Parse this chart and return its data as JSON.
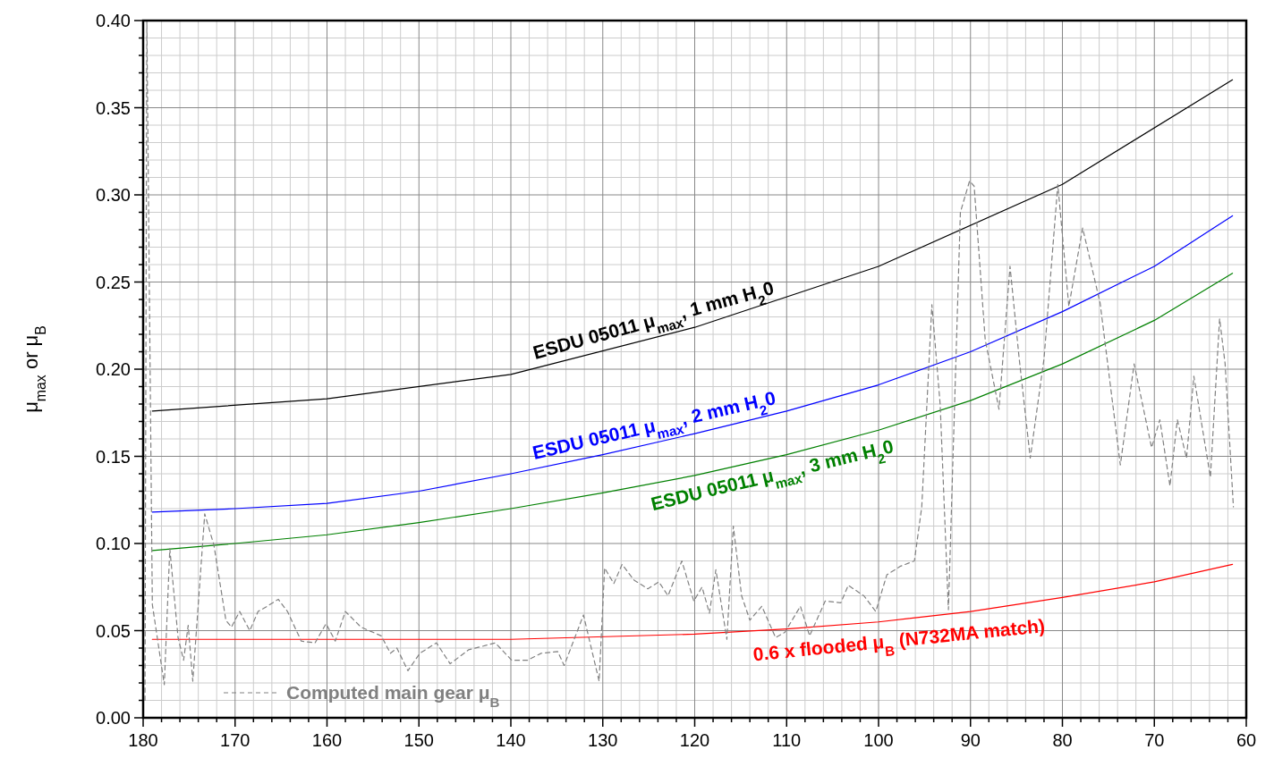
{
  "chart_data": {
    "type": "line",
    "ylabel": "μ$_{max}$ or μ$_{B}$",
    "xlim": [
      180,
      60
    ],
    "xticks": [
      180,
      170,
      160,
      150,
      140,
      130,
      120,
      110,
      100,
      90,
      80,
      70,
      60
    ],
    "ylim": [
      0,
      0.4
    ],
    "yticks": [
      {
        "value": 0,
        "label": "0.00"
      },
      {
        "value": 0.05,
        "label": "0.05"
      },
      {
        "value": 0.1,
        "label": "0.10"
      },
      {
        "value": 0.15,
        "label": "0.15"
      },
      {
        "value": 0.2,
        "label": "0.20"
      },
      {
        "value": 0.25,
        "label": "0.25"
      },
      {
        "value": 0.3,
        "label": "0.30"
      },
      {
        "value": 0.35,
        "label": "0.35"
      },
      {
        "value": 0.4,
        "label": "0.40"
      }
    ],
    "grid": true,
    "legend": "bottom left",
    "marker": "none",
    "series": [
      {
        "name": "ESDU 05011 μ$_{max}$, 1 mm H$_{2}$0",
        "color": "#000000",
        "x": [
          179,
          160,
          140,
          120,
          100,
          80,
          61.5
        ],
        "values": [
          0.176,
          0.183,
          0.197,
          0.224,
          0.259,
          0.306,
          0.366
        ]
      },
      {
        "name": "ESDU 05011 μ$_{max}$, 2 mm H$_{2}$0",
        "color": "#0000ff",
        "x": [
          179,
          170,
          160,
          150,
          140,
          130,
          120,
          110,
          100,
          90,
          80,
          70,
          61.5
        ],
        "values": [
          0.118,
          0.12,
          0.123,
          0.13,
          0.14,
          0.151,
          0.163,
          0.176,
          0.191,
          0.21,
          0.233,
          0.259,
          0.288
        ]
      },
      {
        "name": "ESDU 05011 μ$_{max}$, 3 mm H$_{2}$0",
        "color": "#008000",
        "x": [
          179,
          170,
          160,
          150,
          140,
          130,
          120,
          110,
          100,
          90,
          80,
          70,
          61.5
        ],
        "values": [
          0.096,
          0.1,
          0.105,
          0.112,
          0.12,
          0.129,
          0.139,
          0.151,
          0.165,
          0.182,
          0.203,
          0.228,
          0.255
        ]
      },
      {
        "name": "0.6 x flooded μ$_{B}$ (N732MA match)",
        "color": "#ff0000",
        "x": [
          179,
          160,
          140,
          120,
          110,
          100,
          90,
          80,
          70,
          61.5
        ],
        "values": [
          0.045,
          0.045,
          0.045,
          0.048,
          0.051,
          0.055,
          0.061,
          0.069,
          0.078,
          0.088
        ]
      },
      {
        "name": "Computed main gear μ$_{B}$",
        "color": "#808080",
        "line_style": "dashed",
        "x": [
          179.8,
          179.6,
          179,
          177.7,
          177.1,
          176.2,
          175.6,
          175.1,
          174.6,
          173.3,
          172.3,
          171,
          170.4,
          169.5,
          168.4,
          167.5,
          166.5,
          165.3,
          164.3,
          162.8,
          161.3,
          160.1,
          159.1,
          158,
          156.3,
          154.1,
          153.1,
          152.4,
          151.2,
          149.9,
          148.1,
          146.6,
          144.6,
          143.1,
          141.7,
          139.9,
          138.2,
          136.7,
          134.9,
          134.2,
          132.1,
          130.4,
          129.8,
          128.8,
          127.9,
          126.6,
          125.1,
          123.9,
          122.9,
          121.4,
          120.1,
          119.2,
          118.4,
          117.7,
          116.5,
          115.8,
          114.9,
          114,
          112.7,
          111.2,
          110.2,
          108.5,
          107.5,
          105.8,
          104.1,
          103.3,
          101.6,
          100.3,
          99.1,
          97.6,
          96.1,
          95.3,
          94.2,
          93.3,
          92.4,
          91.1,
          90.1,
          89.6,
          88.4,
          86.9,
          85.7,
          84.7,
          83.5,
          82,
          80.5,
          79.3,
          77.8,
          75.9,
          73.7,
          72.2,
          70.3,
          69.4,
          68.3,
          67.5,
          66.5,
          65.7,
          63.9,
          62.9,
          62.3,
          61.4
        ],
        "values": [
          0.01,
          0.4,
          0.065,
          0.019,
          0.097,
          0.046,
          0.033,
          0.053,
          0.021,
          0.117,
          0.099,
          0.056,
          0.052,
          0.061,
          0.05,
          0.061,
          0.064,
          0.068,
          0.061,
          0.044,
          0.043,
          0.054,
          0.044,
          0.061,
          0.052,
          0.047,
          0.037,
          0.04,
          0.027,
          0.037,
          0.043,
          0.031,
          0.039,
          0.041,
          0.043,
          0.033,
          0.033,
          0.037,
          0.038,
          0.03,
          0.059,
          0.021,
          0.086,
          0.077,
          0.088,
          0.079,
          0.074,
          0.078,
          0.07,
          0.09,
          0.067,
          0.075,
          0.06,
          0.085,
          0.045,
          0.11,
          0.07,
          0.056,
          0.064,
          0.046,
          0.049,
          0.064,
          0.047,
          0.067,
          0.066,
          0.076,
          0.07,
          0.061,
          0.082,
          0.087,
          0.09,
          0.121,
          0.237,
          0.18,
          0.062,
          0.29,
          0.308,
          0.305,
          0.217,
          0.177,
          0.259,
          0.206,
          0.149,
          0.206,
          0.306,
          0.236,
          0.281,
          0.238,
          0.145,
          0.203,
          0.155,
          0.171,
          0.133,
          0.171,
          0.149,
          0.196,
          0.138,
          0.229,
          0.203,
          0.121
        ]
      }
    ]
  }
}
